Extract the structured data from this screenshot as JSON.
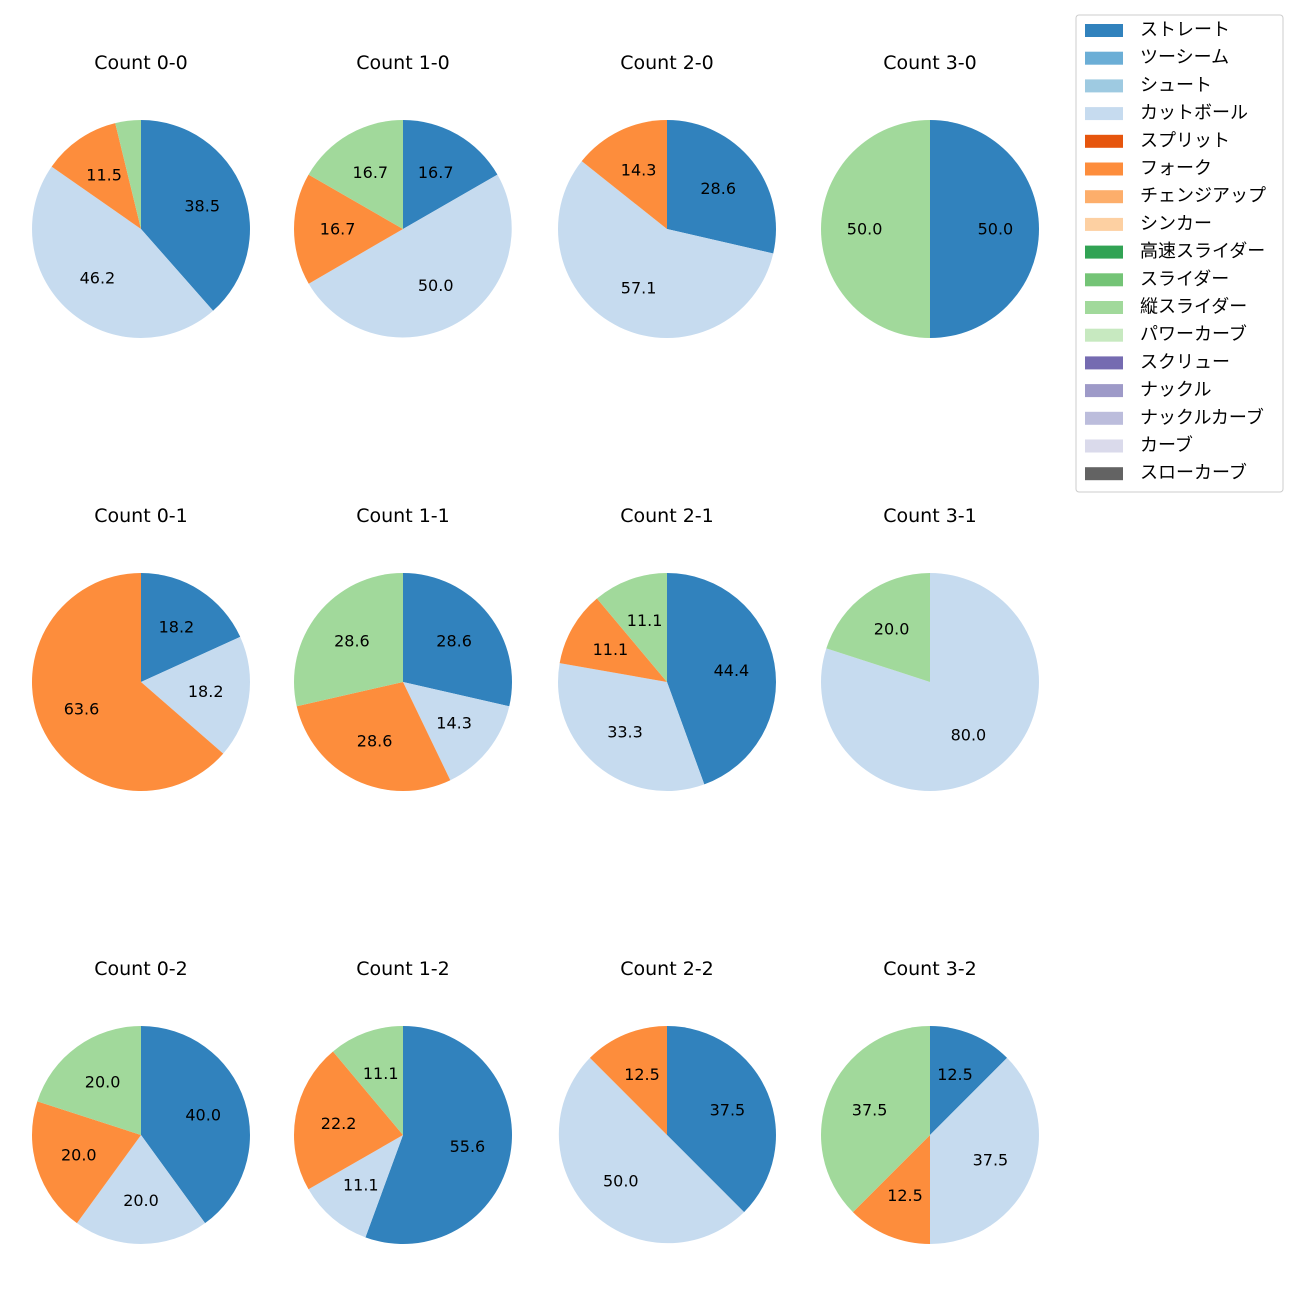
{
  "chart_data": {
    "type": "pie",
    "legend": {
      "placement": "top-right",
      "entries": [
        {
          "name": "ストレート",
          "color": "#3182bd"
        },
        {
          "name": "ツーシーム",
          "color": "#6baed6"
        },
        {
          "name": "シュート",
          "color": "#9ecae1"
        },
        {
          "name": "カットボール",
          "color": "#c6dbef"
        },
        {
          "name": "スプリット",
          "color": "#e6550d"
        },
        {
          "name": "フォーク",
          "color": "#fd8d3c"
        },
        {
          "name": "チェンジアップ",
          "color": "#fdae6b"
        },
        {
          "name": "シンカー",
          "color": "#fdd0a2"
        },
        {
          "name": "高速スライダー",
          "color": "#31a354"
        },
        {
          "name": "スライダー",
          "color": "#74c476"
        },
        {
          "name": "縦スライダー",
          "color": "#a1d99b"
        },
        {
          "name": "パワーカーブ",
          "color": "#c7e9c0"
        },
        {
          "name": "スクリュー",
          "color": "#756bb1"
        },
        {
          "name": "ナックル",
          "color": "#9e9ac8"
        },
        {
          "name": "ナックルカーブ",
          "color": "#bcbddc"
        },
        {
          "name": "カーブ",
          "color": "#dadaeb"
        },
        {
          "name": "スローカーブ",
          "color": "#636363"
        }
      ]
    },
    "pies": [
      {
        "title": "Count 0-0",
        "slices": [
          {
            "pitch": "ストレート",
            "value": 38.5,
            "label": "38.5"
          },
          {
            "pitch": "カットボール",
            "value": 46.2,
            "label": "46.2"
          },
          {
            "pitch": "フォーク",
            "value": 11.5,
            "label": "11.5"
          },
          {
            "pitch": "縦スライダー",
            "value": 3.8,
            "label": ""
          }
        ]
      },
      {
        "title": "Count 1-0",
        "slices": [
          {
            "pitch": "ストレート",
            "value": 16.7,
            "label": "16.7"
          },
          {
            "pitch": "カットボール",
            "value": 50.0,
            "label": "50.0"
          },
          {
            "pitch": "フォーク",
            "value": 16.7,
            "label": "16.7"
          },
          {
            "pitch": "縦スライダー",
            "value": 16.7,
            "label": "16.7"
          }
        ]
      },
      {
        "title": "Count 2-0",
        "slices": [
          {
            "pitch": "ストレート",
            "value": 28.6,
            "label": "28.6"
          },
          {
            "pitch": "カットボール",
            "value": 57.1,
            "label": "57.1"
          },
          {
            "pitch": "フォーク",
            "value": 14.3,
            "label": "14.3"
          }
        ]
      },
      {
        "title": "Count 3-0",
        "slices": [
          {
            "pitch": "ストレート",
            "value": 50.0,
            "label": "50.0"
          },
          {
            "pitch": "縦スライダー",
            "value": 50.0,
            "label": "50.0"
          }
        ]
      },
      {
        "title": "Count 0-1",
        "slices": [
          {
            "pitch": "ストレート",
            "value": 18.2,
            "label": "18.2"
          },
          {
            "pitch": "カットボール",
            "value": 18.2,
            "label": "18.2"
          },
          {
            "pitch": "フォーク",
            "value": 63.6,
            "label": "63.6"
          }
        ]
      },
      {
        "title": "Count 1-1",
        "slices": [
          {
            "pitch": "ストレート",
            "value": 28.6,
            "label": "28.6"
          },
          {
            "pitch": "カットボール",
            "value": 14.3,
            "label": "14.3"
          },
          {
            "pitch": "フォーク",
            "value": 28.6,
            "label": "28.6"
          },
          {
            "pitch": "縦スライダー",
            "value": 28.6,
            "label": "28.6"
          }
        ]
      },
      {
        "title": "Count 2-1",
        "slices": [
          {
            "pitch": "ストレート",
            "value": 44.4,
            "label": "44.4"
          },
          {
            "pitch": "カットボール",
            "value": 33.3,
            "label": "33.3"
          },
          {
            "pitch": "フォーク",
            "value": 11.1,
            "label": "11.1"
          },
          {
            "pitch": "縦スライダー",
            "value": 11.1,
            "label": "11.1"
          }
        ]
      },
      {
        "title": "Count 3-1",
        "slices": [
          {
            "pitch": "カットボール",
            "value": 80.0,
            "label": "80.0"
          },
          {
            "pitch": "縦スライダー",
            "value": 20.0,
            "label": "20.0"
          }
        ]
      },
      {
        "title": "Count 0-2",
        "slices": [
          {
            "pitch": "ストレート",
            "value": 40.0,
            "label": "40.0"
          },
          {
            "pitch": "カットボール",
            "value": 20.0,
            "label": "20.0"
          },
          {
            "pitch": "フォーク",
            "value": 20.0,
            "label": "20.0"
          },
          {
            "pitch": "縦スライダー",
            "value": 20.0,
            "label": "20.0"
          }
        ]
      },
      {
        "title": "Count 1-2",
        "slices": [
          {
            "pitch": "ストレート",
            "value": 55.6,
            "label": "55.6"
          },
          {
            "pitch": "カットボール",
            "value": 11.1,
            "label": "11.1"
          },
          {
            "pitch": "フォーク",
            "value": 22.2,
            "label": "22.2"
          },
          {
            "pitch": "縦スライダー",
            "value": 11.1,
            "label": "11.1"
          }
        ]
      },
      {
        "title": "Count 2-2",
        "slices": [
          {
            "pitch": "ストレート",
            "value": 37.5,
            "label": "37.5"
          },
          {
            "pitch": "カットボール",
            "value": 50.0,
            "label": "50.0"
          },
          {
            "pitch": "フォーク",
            "value": 12.5,
            "label": "12.5"
          }
        ]
      },
      {
        "title": "Count 3-2",
        "slices": [
          {
            "pitch": "ストレート",
            "value": 12.5,
            "label": "12.5"
          },
          {
            "pitch": "カットボール",
            "value": 37.5,
            "label": "37.5"
          },
          {
            "pitch": "フォーク",
            "value": 12.5,
            "label": "12.5"
          },
          {
            "pitch": "縦スライダー",
            "value": 37.5,
            "label": "37.5"
          }
        ]
      }
    ]
  }
}
